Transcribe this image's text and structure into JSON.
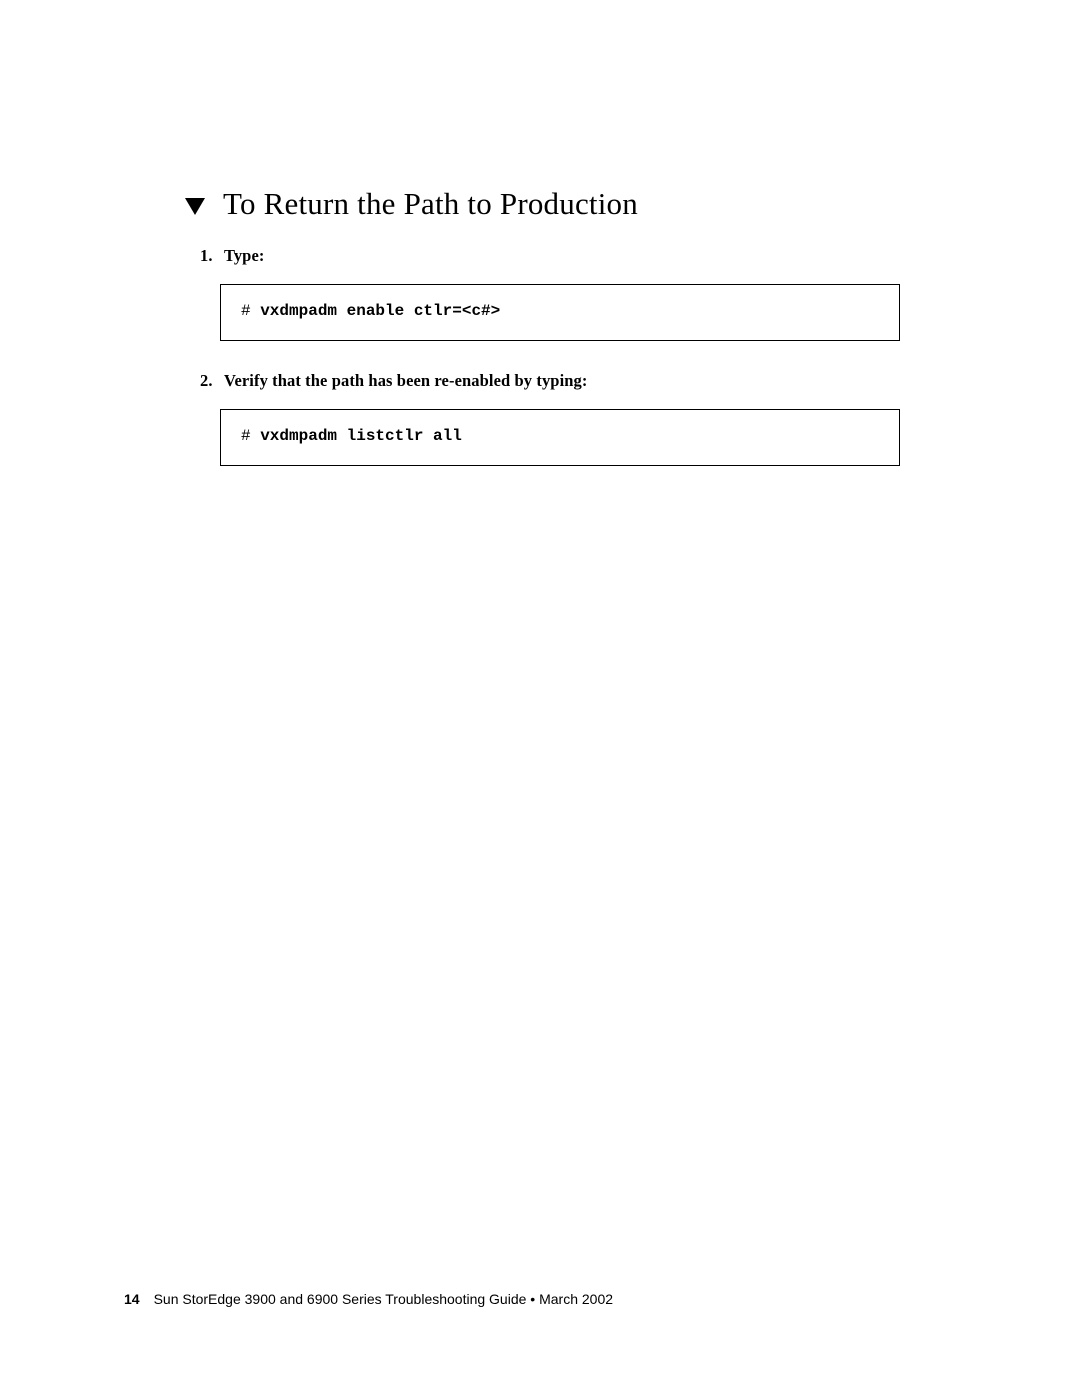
{
  "heading": "To Return the Path to Production",
  "steps": [
    {
      "num": "1.",
      "label": "Type:",
      "code_prompt": "# ",
      "code_cmd": "vxdmpadm enable ctlr=<c#>"
    },
    {
      "num": "2.",
      "label": "Verify that the path has been re-enabled by typing:",
      "code_prompt": "# ",
      "code_cmd": "vxdmpadm listctlr all"
    }
  ],
  "footer": {
    "page_number": "14",
    "text": "Sun StorEdge 3900 and 6900 Series Troubleshooting Guide • March 2002"
  },
  "colors": {
    "background": "#ffffff",
    "text": "#000000",
    "border": "#000000"
  },
  "typography": {
    "heading_font": "Palatino",
    "heading_size_pt": 23,
    "body_size_pt": 12,
    "code_font": "Courier New",
    "code_size_pt": 12,
    "footer_font": "Helvetica",
    "footer_size_pt": 10
  }
}
